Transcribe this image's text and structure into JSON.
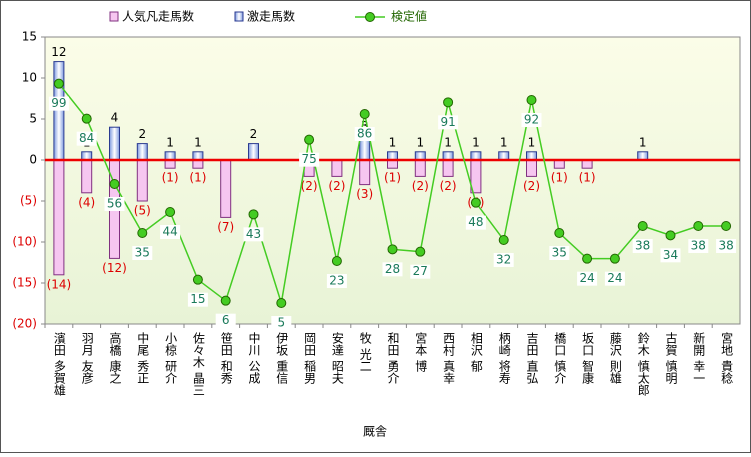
{
  "chart_data": {
    "type": "bar-line",
    "x_label": "厩舎",
    "categories": [
      "濱田 多賀雄",
      "羽月 友彦",
      "高橋 康之",
      "中尾 秀正",
      "小椋 研介",
      "佐々木 晶三",
      "笹田 和秀",
      "中川 公成",
      "伊坂 重信",
      "岡田 稲男",
      "安達 昭夫",
      "牧 光二",
      "和田 勇介",
      "宮本 博",
      "西村 真幸",
      "相沢 郁",
      "柄崎 将寿",
      "吉田 直弘",
      "橋口 慎介",
      "坂口 智康",
      "藤沢 則雄",
      "鈴木 慎太郎",
      "古賀 慎明",
      "新開 幸一",
      "宮地 貴稔"
    ],
    "ylim": [
      -20,
      15
    ],
    "yticks": [
      15,
      10,
      5,
      0,
      {
        "value": -5,
        "label": "(5)"
      },
      {
        "value": -10,
        "label": "(10)"
      },
      {
        "value": -15,
        "label": "(15)"
      },
      {
        "value": -20,
        "label": "(20)"
      }
    ],
    "y2lim": [
      -4,
      119
    ],
    "series": [
      {
        "name": "人気凡走馬数",
        "type": "bar",
        "color": "#f6c6f0",
        "values": [
          -14,
          -4,
          -12,
          -5,
          -1,
          -1,
          -7,
          null,
          null,
          -2,
          -2,
          -3,
          -1,
          -2,
          -2,
          -4,
          null,
          -2,
          -1,
          -1,
          null,
          null,
          null,
          null,
          null
        ],
        "value_labels": [
          "(14)",
          "(4)",
          "(12)",
          "(5)",
          "(1)",
          "(1)",
          "(7)",
          null,
          null,
          "(2)",
          "(2)",
          "(3)",
          "(1)",
          "(2)",
          "(2)",
          "(4)",
          null,
          "(2)",
          "(1)",
          "(1)",
          null,
          null,
          null,
          null,
          null
        ]
      },
      {
        "name": "激走馬数",
        "type": "bar",
        "color": "#c8d4f4",
        "values": [
          12,
          1,
          4,
          2,
          1,
          1,
          null,
          2,
          null,
          null,
          null,
          3,
          1,
          1,
          1,
          1,
          1,
          1,
          null,
          null,
          null,
          1,
          null,
          null,
          null
        ]
      },
      {
        "name": "検定値",
        "type": "line",
        "axis": "y2",
        "color": "#44cc22",
        "values": [
          99,
          84,
          56,
          35,
          44,
          15,
          6,
          43,
          5,
          75,
          23,
          86,
          28,
          27,
          91,
          48,
          32,
          92,
          35,
          24,
          24,
          38,
          34,
          38,
          38
        ]
      }
    ]
  }
}
